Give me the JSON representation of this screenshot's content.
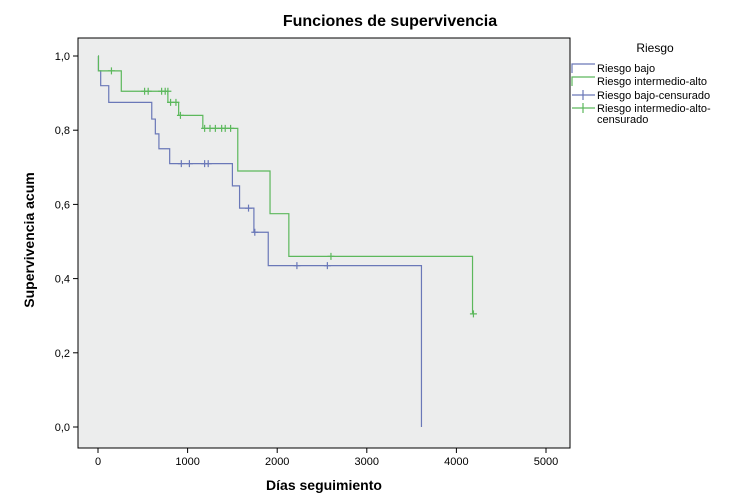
{
  "chart_data": {
    "type": "line",
    "title": "Funciones de supervivencia",
    "xlabel": "Días seguimiento",
    "ylabel": "Supervivencia acum",
    "xlim": [
      0,
      5000
    ],
    "ylim": [
      0,
      1.0
    ],
    "x_ticks": [
      0,
      1000,
      2000,
      3000,
      4000,
      5000
    ],
    "x_tick_labels": [
      "0",
      "1000",
      "2000",
      "3000",
      "4000",
      "5000"
    ],
    "y_ticks": [
      0,
      0.2,
      0.4,
      0.6,
      0.8,
      1.0
    ],
    "y_tick_labels": [
      "0,0",
      "0,2",
      "0,4",
      "0,6",
      "0,8",
      "1,0"
    ],
    "grid": false,
    "legend": {
      "title": "Riesgo",
      "placement": "right",
      "entries": [
        {
          "label": "Riesgo bajo",
          "kind": "line",
          "color": "#6a78b8"
        },
        {
          "label": "Riesgo intermedio-alto",
          "kind": "line",
          "color": "#5cb85c"
        },
        {
          "label": "Riesgo bajo-censurado",
          "kind": "censor",
          "color": "#6a78b8"
        },
        {
          "label": "Riesgo intermedio-alto-censurado",
          "kind": "censor",
          "color": "#5cb85c",
          "lines": [
            "Riesgo intermedio-alto-",
            "censurado"
          ]
        }
      ]
    },
    "series": [
      {
        "name": "Riesgo bajo",
        "color": "#6a78b8",
        "steps": [
          [
            0,
            1.0
          ],
          [
            5,
            0.96
          ],
          [
            30,
            0.92
          ],
          [
            120,
            0.875
          ],
          [
            600,
            0.83
          ],
          [
            640,
            0.79
          ],
          [
            680,
            0.75
          ],
          [
            800,
            0.71
          ],
          [
            1500,
            0.65
          ],
          [
            1580,
            0.59
          ],
          [
            1740,
            0.525
          ],
          [
            1900,
            0.435
          ],
          [
            3610,
            0.435
          ],
          [
            3610,
            0.0
          ]
        ],
        "censored": [
          [
            930,
            0.71
          ],
          [
            1020,
            0.71
          ],
          [
            1190,
            0.71
          ],
          [
            1230,
            0.71
          ],
          [
            1680,
            0.59
          ],
          [
            1750,
            0.525
          ],
          [
            2220,
            0.435
          ],
          [
            2560,
            0.435
          ]
        ]
      },
      {
        "name": "Riesgo intermedio-alto",
        "color": "#5cb85c",
        "steps": [
          [
            0,
            1.0
          ],
          [
            5,
            0.96
          ],
          [
            260,
            0.905
          ],
          [
            780,
            0.875
          ],
          [
            900,
            0.84
          ],
          [
            1170,
            0.805
          ],
          [
            1560,
            0.69
          ],
          [
            1920,
            0.575
          ],
          [
            2130,
            0.46
          ],
          [
            4180,
            0.46
          ],
          [
            4180,
            0.305
          ]
        ],
        "censored": [
          [
            150,
            0.96
          ],
          [
            520,
            0.905
          ],
          [
            560,
            0.905
          ],
          [
            710,
            0.905
          ],
          [
            750,
            0.905
          ],
          [
            780,
            0.905
          ],
          [
            810,
            0.875
          ],
          [
            870,
            0.875
          ],
          [
            920,
            0.84
          ],
          [
            1190,
            0.805
          ],
          [
            1250,
            0.805
          ],
          [
            1310,
            0.805
          ],
          [
            1380,
            0.805
          ],
          [
            1420,
            0.805
          ],
          [
            1480,
            0.805
          ],
          [
            2600,
            0.46
          ],
          [
            4190,
            0.305
          ]
        ]
      }
    ]
  }
}
